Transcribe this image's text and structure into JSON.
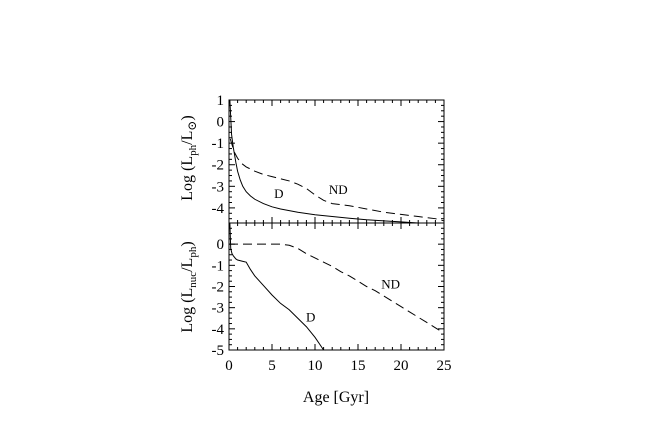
{
  "chart_data": [
    {
      "type": "line",
      "panel": "top",
      "ylabel": {
        "main": "Log (L",
        "sub": "ph",
        "mid": "/L",
        "sub2": "⊙",
        "end": ")"
      },
      "xlim": [
        0,
        25
      ],
      "ylim": [
        -4.7,
        1
      ],
      "yticks": [
        1,
        0,
        -1,
        -2,
        -3,
        -4
      ],
      "ytick_labels": [
        "1",
        "0",
        "-1",
        "-2",
        "-3",
        "-4"
      ],
      "series": [
        {
          "name": "D",
          "style": "solid",
          "x": [
            0.1,
            0.3,
            0.5,
            0.8,
            1.0,
            1.3,
            1.6,
            2.0,
            2.5,
            3.0,
            4.0,
            5.0,
            6.0,
            8.0,
            10.0,
            12.0,
            14.0,
            16.0,
            18.0,
            20.0,
            22.0,
            25.0
          ],
          "y": [
            1.0,
            -0.6,
            -1.2,
            -1.9,
            -2.3,
            -2.7,
            -3.0,
            -3.25,
            -3.45,
            -3.6,
            -3.8,
            -3.95,
            -4.05,
            -4.2,
            -4.32,
            -4.4,
            -4.48,
            -4.55,
            -4.6,
            -4.65,
            -4.7,
            -4.75
          ]
        },
        {
          "name": "ND",
          "style": "dashed",
          "x": [
            0.15,
            0.3,
            0.6,
            1.0,
            1.5,
            2.0,
            3.0,
            4.0,
            5.0,
            6.0,
            7.0,
            8.0,
            9.0,
            10.0,
            11.0,
            12.0,
            13.0,
            14.0,
            16.0,
            18.0,
            20.0,
            22.0,
            24.0,
            25.0
          ],
          "y": [
            -0.8,
            -1.0,
            -1.4,
            -1.7,
            -1.95,
            -2.1,
            -2.3,
            -2.45,
            -2.55,
            -2.65,
            -2.75,
            -2.9,
            -3.1,
            -3.4,
            -3.65,
            -3.8,
            -3.85,
            -3.9,
            -4.05,
            -4.2,
            -4.3,
            -4.4,
            -4.5,
            -4.6
          ]
        }
      ],
      "annotations": [
        {
          "text": "D",
          "x": 5.8,
          "y": -3.55
        },
        {
          "text": "ND",
          "x": 12.7,
          "y": -3.35
        }
      ]
    },
    {
      "type": "line",
      "panel": "bottom",
      "xlabel": "Age [Gyr]",
      "ylabel": {
        "main": "Log (L",
        "sub": "nuc",
        "mid": "/L",
        "sub2": "ph",
        "end": ")"
      },
      "xlim": [
        0,
        25
      ],
      "ylim": [
        -5,
        1
      ],
      "xticks": [
        0,
        5,
        10,
        15,
        20,
        25
      ],
      "xtick_labels": [
        "0",
        "5",
        "10",
        "15",
        "20",
        "25"
      ],
      "yticks": [
        0,
        -1,
        -2,
        -3,
        -4,
        -5
      ],
      "ytick_labels": [
        "0",
        "-1",
        "-2",
        "-3",
        "-4",
        "-5"
      ],
      "series": [
        {
          "name": "D",
          "style": "solid",
          "x": [
            0.1,
            0.2,
            0.35,
            0.5,
            0.8,
            1.0,
            1.5,
            2.0,
            2.5,
            3.0,
            4.0,
            5.0,
            6.0,
            7.0,
            8.0,
            9.0,
            10.0,
            10.5,
            11.0
          ],
          "y": [
            1.0,
            -0.2,
            -0.45,
            -0.55,
            -0.7,
            -0.75,
            -0.8,
            -0.85,
            -1.2,
            -1.5,
            -1.95,
            -2.4,
            -2.8,
            -3.1,
            -3.5,
            -3.9,
            -4.4,
            -4.7,
            -5.0
          ]
        },
        {
          "name": "ND",
          "style": "dashed",
          "x": [
            0.0,
            1.0,
            2.0,
            3.0,
            4.0,
            5.0,
            6.0,
            7.0,
            8.0,
            9.0,
            10.0,
            11.0,
            12.0,
            13.0,
            14.0,
            15.0,
            16.0,
            17.0,
            18.0,
            19.0,
            20.0,
            21.0,
            22.0,
            23.0,
            24.0,
            25.0
          ],
          "y": [
            0.0,
            0.0,
            0.0,
            0.0,
            0.0,
            0.0,
            0.0,
            -0.05,
            -0.2,
            -0.45,
            -0.65,
            -0.85,
            -1.05,
            -1.3,
            -1.5,
            -1.75,
            -2.0,
            -2.2,
            -2.45,
            -2.7,
            -2.95,
            -3.2,
            -3.45,
            -3.7,
            -3.95,
            -4.2
          ]
        }
      ],
      "annotations": [
        {
          "text": "D",
          "x": 9.5,
          "y": -3.65
        },
        {
          "text": "ND",
          "x": 18.8,
          "y": -2.1
        }
      ]
    }
  ]
}
